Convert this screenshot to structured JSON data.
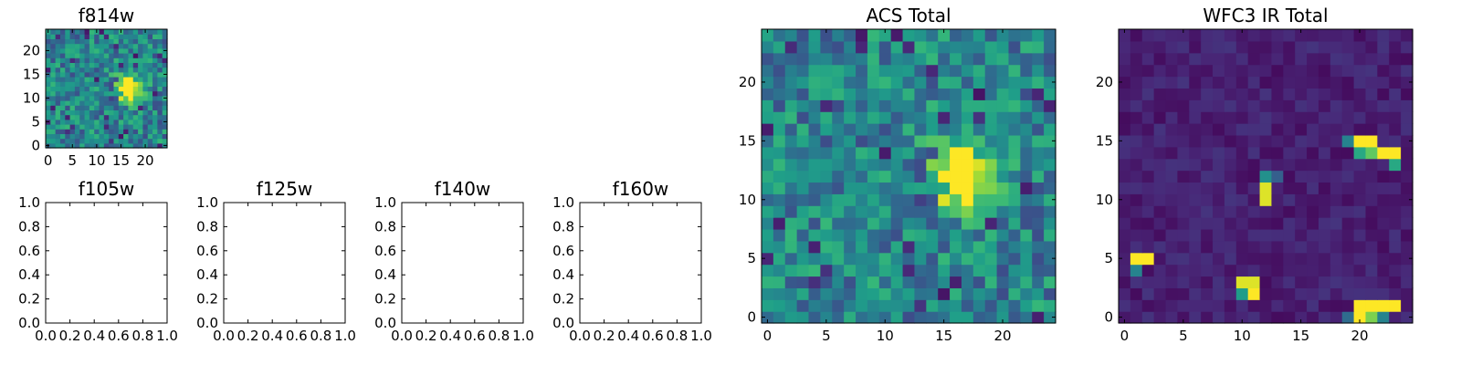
{
  "chart_data": [
    {
      "type": "heatmap",
      "title": "f814w",
      "colormap": "viridis",
      "xlim": [
        -0.5,
        24.5
      ],
      "ylim": [
        -0.5,
        24.5
      ],
      "xticks": [
        "0",
        "5",
        "10",
        "15",
        "20"
      ],
      "yticks": [
        "0",
        "5",
        "10",
        "15",
        "20"
      ],
      "grid_size": 25,
      "description": "noisy background with one bright source near x=16, y=12"
    },
    {
      "type": "empty",
      "title": "f105w",
      "xlim": [
        0,
        1
      ],
      "ylim": [
        0,
        1
      ],
      "xticks": [
        "0.0",
        "0.2",
        "0.4",
        "0.6",
        "0.8",
        "1.0"
      ],
      "yticks": [
        "0.0",
        "0.2",
        "0.4",
        "0.6",
        "0.8",
        "1.0"
      ]
    },
    {
      "type": "empty",
      "title": "f125w",
      "xlim": [
        0,
        1
      ],
      "ylim": [
        0,
        1
      ],
      "xticks": [
        "0.0",
        "0.2",
        "0.4",
        "0.6",
        "0.8",
        "1.0"
      ],
      "yticks": [
        "0.0",
        "0.2",
        "0.4",
        "0.6",
        "0.8",
        "1.0"
      ]
    },
    {
      "type": "empty",
      "title": "f140w",
      "xlim": [
        0,
        1
      ],
      "ylim": [
        0,
        1
      ],
      "xticks": [
        "0.0",
        "0.2",
        "0.4",
        "0.6",
        "0.8",
        "1.0"
      ],
      "yticks": [
        "0.0",
        "0.2",
        "0.4",
        "0.6",
        "0.8",
        "1.0"
      ]
    },
    {
      "type": "empty",
      "title": "f160w",
      "xlim": [
        0,
        1
      ],
      "ylim": [
        0,
        1
      ],
      "xticks": [
        "0.0",
        "0.2",
        "0.4",
        "0.6",
        "0.8",
        "1.0"
      ],
      "yticks": [
        "0.0",
        "0.2",
        "0.4",
        "0.6",
        "0.8",
        "1.0"
      ]
    },
    {
      "type": "heatmap",
      "title": "ACS Total",
      "colormap": "viridis",
      "xlim": [
        -0.5,
        24.5
      ],
      "ylim": [
        -0.5,
        24.5
      ],
      "xticks": [
        "0",
        "5",
        "10",
        "15",
        "20"
      ],
      "yticks": [
        "0",
        "5",
        "10",
        "15",
        "20"
      ],
      "grid_size": 25,
      "description": "same field as f814w: noisy background with one bright source near x=16, y=12"
    },
    {
      "type": "heatmap",
      "title": "WFC3 IR Total",
      "colormap": "viridis",
      "xlim": [
        -0.5,
        24.5
      ],
      "ylim": [
        -0.5,
        24.5
      ],
      "xticks": [
        "0",
        "5",
        "10",
        "15",
        "20"
      ],
      "yticks": [
        "0",
        "5",
        "10",
        "15",
        "20"
      ],
      "grid_size": 25,
      "description": "dark background with a few bright hot-pixel clusters"
    }
  ]
}
